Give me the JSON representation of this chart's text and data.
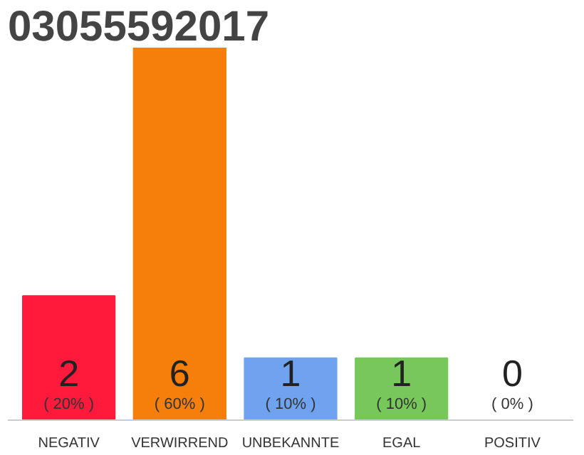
{
  "chart_data": {
    "type": "bar",
    "title": "03055592017",
    "categories": [
      "NEGATIV",
      "VERWIRREND",
      "UNBEKANNTE",
      "EGAL",
      "POSITIV"
    ],
    "values": [
      2,
      6,
      1,
      1,
      0
    ],
    "colors": [
      "#ff1a3c",
      "#f57f0a",
      "#6fa3f0",
      "#77c85a",
      "#eeeeee"
    ],
    "value_labels": [
      "2\n( 20% )",
      "6\n( 60% )",
      "1\n( 10% )",
      "1\n( 10% )",
      "0\n( 0% )"
    ],
    "grid": false
  }
}
